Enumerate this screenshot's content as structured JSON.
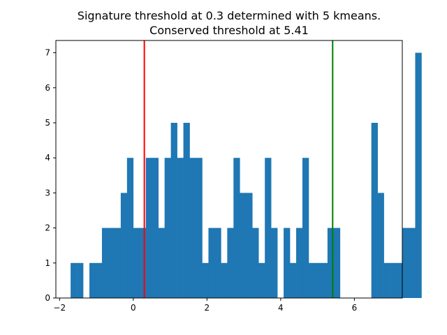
{
  "chart_data": {
    "type": "bar",
    "title_lines": [
      "Signature threshold at 0.3 determined with 5 kmeans.",
      "Conserved threshold at 5.41"
    ],
    "xlabel": "",
    "ylabel": "",
    "xlim": [
      -2.1,
      7.3
    ],
    "ylim": [
      0,
      7.35
    ],
    "x_ticks": [
      -2,
      0,
      2,
      4,
      6
    ],
    "y_ticks": [
      0,
      1,
      2,
      3,
      4,
      5,
      6,
      7
    ],
    "grid": false,
    "bar_color": "#1f77b4",
    "bins_start": -1.7,
    "bin_width": 0.17,
    "counts": [
      1,
      1,
      0,
      1,
      1,
      2,
      2,
      2,
      3,
      4,
      2,
      2,
      4,
      4,
      2,
      4,
      5,
      4,
      5,
      4,
      4,
      1,
      2,
      2,
      1,
      2,
      4,
      3,
      3,
      2,
      1,
      4,
      2,
      0,
      2,
      1,
      2,
      4,
      1,
      1,
      1,
      2,
      2,
      0,
      0,
      0,
      0,
      0,
      5,
      3,
      1,
      1,
      1,
      2,
      2,
      7
    ],
    "thresholds": [
      {
        "name": "Signature threshold",
        "value": 0.3,
        "color": "#ff0000"
      },
      {
        "name": "Conserved threshold",
        "value": 5.41,
        "color": "#008000"
      }
    ]
  }
}
